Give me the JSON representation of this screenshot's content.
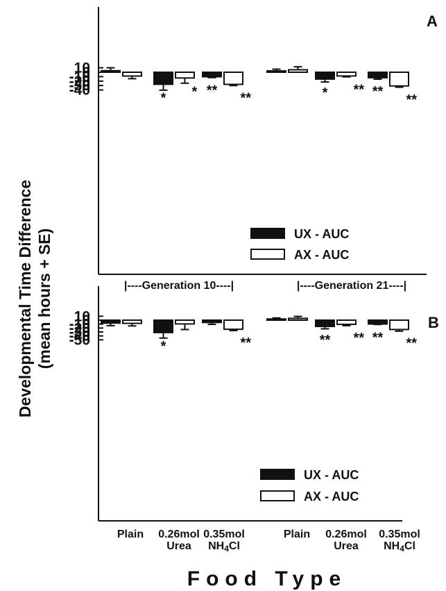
{
  "figure": {
    "ylabel_line1": "Developmental Time Difference",
    "ylabel_line2": "(mean hours + SE)",
    "xlabel": "Food Type",
    "generation_labels": [
      "|----Generation 10----|",
      "|----Generation 21----|"
    ]
  },
  "chart_data": [
    {
      "type": "bar",
      "panel_label": "A",
      "ylim": [
        -45,
        15
      ],
      "yticks": [
        10,
        0,
        -10,
        -20,
        -30,
        -40
      ],
      "groups": [
        "Generation 10",
        "Generation 21"
      ],
      "categories": [
        "Plain",
        "0.26mol Urea",
        "0.35mol NH4Cl",
        "Plain",
        "0.26mol Urea",
        "0.35mol NH4Cl"
      ],
      "legend_position": "bottom-right",
      "series": [
        {
          "name": "UX - AUC",
          "color": "#111111",
          "values": [
            3.5,
            -27.3,
            -10.2,
            3.0,
            -15.5,
            -12.4
          ],
          "se": [
            6.5,
            13.2,
            2.0,
            4.0,
            6.5,
            3.3
          ],
          "significance": [
            "",
            "*",
            "**",
            "",
            "*",
            "**"
          ]
        },
        {
          "name": "AX - AUC",
          "color": "#ffffff",
          "values": [
            -8.6,
            -13.0,
            -27.4,
            5.5,
            -8.5,
            -31.0
          ],
          "se": [
            6.0,
            11.7,
            2.8,
            6.8,
            2.0,
            2.8
          ],
          "significance": [
            "",
            "*",
            "**",
            "",
            "**",
            "**"
          ]
        }
      ]
    },
    {
      "type": "bar",
      "panel_label": "B",
      "ylim": [
        -50,
        15
      ],
      "yticks": [
        10,
        0,
        -10,
        -20,
        -30,
        -40,
        -50
      ],
      "groups": [
        "Generation 10",
        "Generation 21"
      ],
      "categories": [
        "Plain",
        "0.26mol Urea",
        "0.35mol NH4Cl",
        "Plain",
        "0.26mol Urea",
        "0.35mol NH4Cl"
      ],
      "legend_position": "bottom-right",
      "series": [
        {
          "name": "UX - AUC",
          "color": "#111111",
          "values": [
            -7.5,
            -31.5,
            -5.9,
            3.0,
            -16.0,
            -9.8
          ],
          "se": [
            6.5,
            14.0,
            4.8,
            2.7,
            6.0,
            1.2
          ],
          "significance": [
            "",
            "*",
            "",
            "",
            "**",
            "**"
          ]
        },
        {
          "name": "AX - AUC",
          "color": "#ffffff",
          "values": [
            -8.1,
            -9.6,
            -23.1,
            4.6,
            -10.6,
            -23.7
          ],
          "se": [
            6.6,
            14.2,
            3.5,
            5.0,
            3.4,
            4.2
          ],
          "significance": [
            "",
            "",
            "**",
            "",
            "**",
            "**"
          ]
        }
      ]
    }
  ]
}
